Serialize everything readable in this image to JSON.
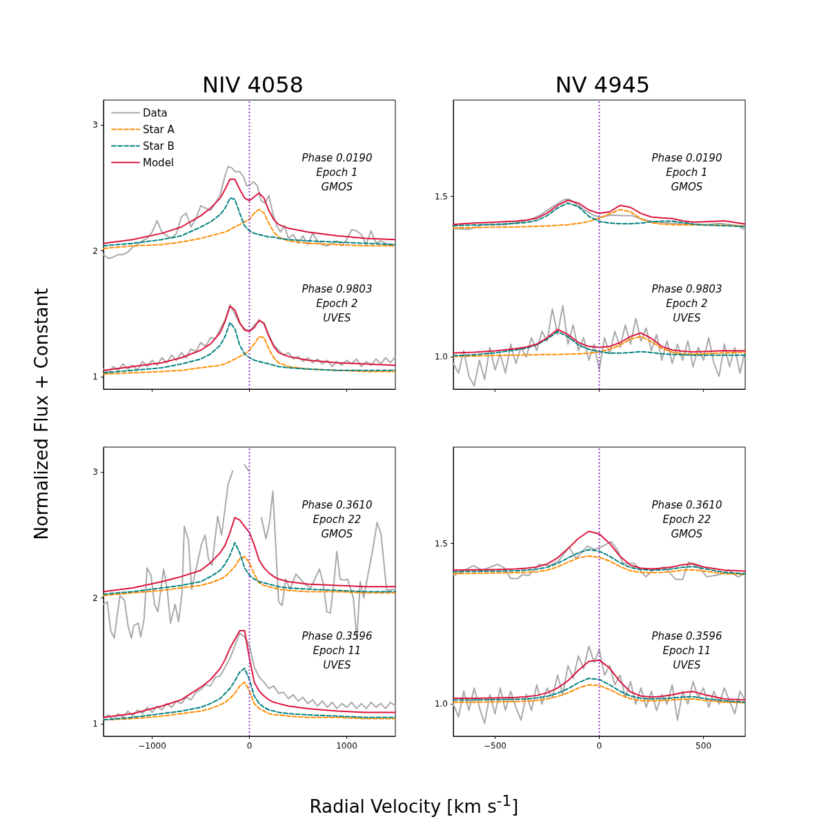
{
  "chart_data": [
    {
      "type": "line",
      "title": "NIV 4058",
      "ylabel": "Normalized Flux + Constant",
      "xlim": [
        -1500,
        1500
      ],
      "ylim": [
        0.9,
        3.2
      ],
      "xticks": [
        {
          "value": -1000,
          "label": null
        },
        {
          "value": 0,
          "label": null
        },
        {
          "value": 1000,
          "label": null
        }
      ],
      "yticks": [
        1,
        2,
        3
      ],
      "tick_labels": "y",
      "legend": "top left",
      "annotations": [
        "Phase 0.0190\nEpoch 1\nGMOS",
        "Phase 0.9803\nEpoch 2\nUVES"
      ],
      "ref_lines": [
        {
          "axis": "x",
          "value": 0,
          "color": "#9932cc",
          "line_style": "dotted"
        }
      ],
      "x": [
        -1500,
        -1200,
        -900,
        -700,
        -500,
        -400,
        -300,
        -250,
        -200,
        -150,
        -100,
        -50,
        0,
        50,
        100,
        150,
        200,
        250,
        300,
        400,
        600,
        900,
        1200,
        1500
      ],
      "series": [
        {
          "name": "Data",
          "color": "#a9a9a9",
          "line_style": "solid",
          "x": [
            -1500,
            -1450,
            -1400,
            -1350,
            -1300,
            -1250,
            -1200,
            -1150,
            -1100,
            -1050,
            -1000,
            -950,
            -900,
            -850,
            -800,
            -750,
            -700,
            -650,
            -600,
            -550,
            -500,
            -450,
            -400,
            -350,
            -300,
            -250,
            -220,
            -180,
            -150,
            -100,
            -60,
            -30,
            0,
            40,
            80,
            120,
            160,
            200,
            240,
            280,
            320,
            360,
            400,
            450,
            500,
            550,
            600,
            650,
            700,
            750,
            800,
            850,
            900,
            950,
            1000,
            1050,
            1100,
            1150,
            1200,
            1250,
            1300,
            1350,
            1400,
            1450,
            1500
          ],
          "values": [
            1.97,
            1.94,
            1.95,
            1.97,
            1.97,
            1.99,
            2.03,
            2.05,
            2.08,
            2.1,
            2.15,
            2.24,
            2.15,
            2.12,
            2.1,
            2.14,
            2.27,
            2.3,
            2.19,
            2.26,
            2.36,
            2.34,
            2.32,
            2.38,
            2.45,
            2.6,
            2.67,
            2.66,
            2.63,
            2.63,
            2.59,
            2.52,
            2.52,
            2.55,
            2.52,
            2.4,
            2.38,
            2.44,
            2.3,
            2.2,
            2.15,
            2.2,
            2.1,
            2.13,
            2.06,
            2.12,
            2.05,
            2.14,
            2.08,
            2.05,
            2.04,
            2.06,
            2.08,
            2.04,
            2.09,
            2.17,
            2.16,
            2.13,
            2.05,
            2.16,
            2.06,
            2.08,
            2.06,
            2.04,
            2.05
          ]
        },
        {
          "name": "Star A",
          "color": "#ff8c00",
          "line_style": "dashed",
          "values": [
            2.02,
            2.04,
            2.05,
            2.07,
            2.1,
            2.12,
            2.14,
            2.15,
            2.17,
            2.19,
            2.21,
            2.23,
            2.25,
            2.3,
            2.33,
            2.3,
            2.22,
            2.15,
            2.11,
            2.08,
            2.06,
            2.05,
            2.04,
            2.04
          ]
        },
        {
          "name": "Star B",
          "color": "#008080",
          "line_style": "dashed",
          "values": [
            2.04,
            2.06,
            2.09,
            2.12,
            2.19,
            2.23,
            2.29,
            2.34,
            2.42,
            2.41,
            2.3,
            2.2,
            2.16,
            2.14,
            2.13,
            2.12,
            2.11,
            2.11,
            2.1,
            2.09,
            2.08,
            2.07,
            2.06,
            2.05
          ]
        },
        {
          "name": "Model",
          "color": "#dc143c",
          "line_style": "solid",
          "values": [
            2.06,
            2.09,
            2.14,
            2.19,
            2.28,
            2.34,
            2.42,
            2.49,
            2.57,
            2.57,
            2.49,
            2.42,
            2.4,
            2.43,
            2.46,
            2.42,
            2.32,
            2.25,
            2.21,
            2.18,
            2.15,
            2.12,
            2.1,
            2.09
          ]
        },
        {
          "color": "#a9a9a9",
          "line_style": "solid",
          "x": [
            -1500,
            -1450,
            -1400,
            -1350,
            -1300,
            -1250,
            -1200,
            -1150,
            -1100,
            -1050,
            -1000,
            -950,
            -900,
            -850,
            -800,
            -750,
            -700,
            -650,
            -600,
            -550,
            -500,
            -450,
            -400,
            -350,
            -300,
            -250,
            -200,
            -150,
            -100,
            -50,
            0,
            50,
            100,
            150,
            200,
            250,
            300,
            350,
            400,
            450,
            500,
            550,
            600,
            650,
            700,
            750,
            800,
            850,
            900,
            950,
            1000,
            1050,
            1100,
            1150,
            1200,
            1250,
            1300,
            1350,
            1400,
            1450,
            1500
          ],
          "values": [
            1.06,
            1.03,
            1.08,
            1.05,
            1.1,
            1.06,
            1.09,
            1.05,
            1.12,
            1.08,
            1.13,
            1.09,
            1.15,
            1.11,
            1.17,
            1.13,
            1.19,
            1.15,
            1.22,
            1.2,
            1.27,
            1.24,
            1.31,
            1.3,
            1.38,
            1.45,
            1.57,
            1.5,
            1.42,
            1.38,
            1.36,
            1.41,
            1.44,
            1.43,
            1.33,
            1.25,
            1.21,
            1.17,
            1.19,
            1.14,
            1.16,
            1.12,
            1.15,
            1.11,
            1.14,
            1.1,
            1.13,
            1.08,
            1.12,
            1.09,
            1.13,
            1.1,
            1.14,
            1.08,
            1.12,
            1.09,
            1.14,
            1.1,
            1.15,
            1.11,
            1.16
          ]
        },
        {
          "color": "#ff8c00",
          "line_style": "dashed",
          "values": [
            1.02,
            1.03,
            1.04,
            1.05,
            1.07,
            1.08,
            1.09,
            1.1,
            1.12,
            1.14,
            1.16,
            1.18,
            1.21,
            1.26,
            1.32,
            1.31,
            1.22,
            1.15,
            1.11,
            1.08,
            1.06,
            1.05,
            1.04,
            1.04
          ]
        },
        {
          "color": "#008080",
          "line_style": "dashed",
          "values": [
            1.03,
            1.05,
            1.07,
            1.1,
            1.14,
            1.18,
            1.25,
            1.32,
            1.43,
            1.38,
            1.25,
            1.18,
            1.15,
            1.13,
            1.12,
            1.11,
            1.1,
            1.09,
            1.08,
            1.07,
            1.06,
            1.05,
            1.05,
            1.05
          ]
        },
        {
          "color": "#dc143c",
          "line_style": "solid",
          "values": [
            1.05,
            1.08,
            1.11,
            1.15,
            1.21,
            1.26,
            1.35,
            1.44,
            1.56,
            1.53,
            1.43,
            1.37,
            1.36,
            1.39,
            1.45,
            1.42,
            1.32,
            1.24,
            1.19,
            1.16,
            1.13,
            1.11,
            1.1,
            1.09
          ]
        }
      ]
    },
    {
      "type": "line",
      "title": "NV 4945",
      "xlim": [
        -700,
        700
      ],
      "ylim": [
        0.9,
        1.8
      ],
      "xticks": [
        {
          "value": -500,
          "label": null
        },
        {
          "value": 0,
          "label": null
        },
        {
          "value": 500,
          "label": null
        }
      ],
      "yticks": [
        {
          "value": 1,
          "label": "1.0"
        },
        1.5
      ],
      "tick_labels": "y",
      "annotations": [
        "Phase 0.0190\nEpoch 1\nGMOS",
        "Phase 0.9803\nEpoch 2\nUVES"
      ],
      "ref_lines": [
        {
          "axis": "x",
          "value": 0,
          "color": "#9932cc",
          "line_style": "dotted"
        }
      ],
      "x": [
        -700,
        -600,
        -500,
        -400,
        -350,
        -300,
        -250,
        -200,
        -150,
        -100,
        -50,
        0,
        50,
        100,
        150,
        200,
        250,
        300,
        350,
        400,
        450,
        500,
        600,
        700
      ],
      "series": [
        {
          "color": "#a9a9a9",
          "line_style": "solid",
          "x": [
            -700,
            -626,
            -560,
            -449,
            -339,
            -283,
            -217,
            -162,
            -140,
            -85,
            -30,
            3,
            58,
            114,
            158,
            202,
            268,
            334,
            434,
            511,
            577,
            665,
            698
          ],
          "values": [
            1.4,
            1.397,
            1.412,
            1.412,
            1.426,
            1.442,
            1.471,
            1.492,
            1.49,
            1.464,
            1.442,
            1.435,
            1.442,
            1.44,
            1.44,
            1.43,
            1.42,
            1.417,
            1.414,
            1.412,
            1.416,
            1.409,
            1.396
          ]
        },
        {
          "color": "#ff8c00",
          "line_style": "dashed",
          "values": [
            1.402,
            1.403,
            1.404,
            1.405,
            1.406,
            1.407,
            1.408,
            1.41,
            1.412,
            1.416,
            1.422,
            1.432,
            1.446,
            1.459,
            1.452,
            1.43,
            1.418,
            1.414,
            1.412,
            1.411,
            1.411,
            1.411,
            1.41,
            1.408
          ]
        },
        {
          "color": "#008080",
          "line_style": "dashed",
          "values": [
            1.409,
            1.411,
            1.413,
            1.416,
            1.419,
            1.425,
            1.44,
            1.464,
            1.479,
            1.468,
            1.438,
            1.422,
            1.417,
            1.415,
            1.415,
            1.417,
            1.421,
            1.423,
            1.423,
            1.419,
            1.414,
            1.411,
            1.409,
            1.406
          ]
        },
        {
          "color": "#dc143c",
          "line_style": "solid",
          "values": [
            1.413,
            1.417,
            1.42,
            1.423,
            1.426,
            1.432,
            1.448,
            1.472,
            1.488,
            1.479,
            1.458,
            1.447,
            1.452,
            1.472,
            1.466,
            1.447,
            1.436,
            1.433,
            1.431,
            1.424,
            1.42,
            1.421,
            1.424,
            1.414
          ]
        },
        {
          "color": "#a9a9a9",
          "line_style": "solid",
          "x": [
            -700,
            -675,
            -650,
            -625,
            -600,
            -575,
            -550,
            -525,
            -500,
            -475,
            -450,
            -425,
            -400,
            -375,
            -350,
            -325,
            -300,
            -275,
            -250,
            -225,
            -200,
            -175,
            -150,
            -125,
            -100,
            -75,
            -50,
            -25,
            0,
            25,
            50,
            75,
            100,
            125,
            150,
            175,
            200,
            225,
            250,
            275,
            300,
            325,
            350,
            375,
            400,
            425,
            450,
            475,
            500,
            525,
            550,
            575,
            600,
            625,
            650,
            675,
            700
          ],
          "values": [
            0.98,
            0.95,
            1.02,
            0.94,
            0.91,
            0.99,
            0.93,
            1.03,
            0.96,
            1.01,
            0.95,
            1.04,
            0.98,
            1.03,
            1.0,
            1.06,
            1.02,
            1.08,
            1.05,
            1.15,
            1.07,
            1.16,
            1.04,
            1.1,
            1.02,
            1.06,
            0.99,
            1.04,
            0.96,
            1.06,
            1.01,
            1.08,
            1.03,
            1.1,
            1.04,
            1.12,
            1.05,
            1.09,
            1.02,
            1.07,
            0.99,
            1.05,
            0.98,
            1.04,
            0.99,
            1.05,
            0.97,
            1.03,
            0.99,
            1.06,
            0.98,
            0.94,
            1.04,
            0.97,
            1.03,
            0.95,
            1.02
          ]
        },
        {
          "color": "#ff8c00",
          "line_style": "dashed",
          "values": [
            1.002,
            1.003,
            1.005,
            1.006,
            1.007,
            1.007,
            1.008,
            1.008,
            1.009,
            1.01,
            1.012,
            1.016,
            1.024,
            1.037,
            1.056,
            1.064,
            1.048,
            1.027,
            1.015,
            1.01,
            1.009,
            1.01,
            1.013,
            1.015
          ]
        },
        {
          "color": "#008080",
          "line_style": "dashed",
          "values": [
            1.004,
            1.007,
            1.013,
            1.022,
            1.028,
            1.038,
            1.056,
            1.079,
            1.063,
            1.038,
            1.024,
            1.017,
            1.012,
            1.012,
            1.014,
            1.017,
            1.014,
            1.01,
            1.008,
            1.007,
            1.006,
            1.006,
            1.006,
            1.006
          ]
        },
        {
          "color": "#dc143c",
          "line_style": "solid",
          "values": [
            1.013,
            1.015,
            1.019,
            1.026,
            1.031,
            1.04,
            1.06,
            1.086,
            1.07,
            1.045,
            1.033,
            1.03,
            1.033,
            1.045,
            1.064,
            1.075,
            1.058,
            1.033,
            1.022,
            1.018,
            1.016,
            1.017,
            1.02,
            1.019
          ]
        }
      ]
    },
    {
      "type": "line",
      "xlabel": "Radial Velocity [km s$^{-1}$]",
      "xlim": [
        -1500,
        1500
      ],
      "ylim": [
        0.9,
        3.2
      ],
      "xticks": [
        {
          "value": -1000,
          "label": "−1000"
        },
        0,
        1000
      ],
      "yticks": [
        1,
        2,
        3
      ],
      "annotations": [
        "Phase 0.3610\nEpoch 22\nGMOS",
        "Phase 0.3596\nEpoch 11\nUVES"
      ],
      "ref_lines": [
        {
          "axis": "x",
          "value": 0,
          "color": "#9932cc",
          "line_style": "dotted"
        }
      ],
      "x": [
        -1500,
        -1200,
        -900,
        -700,
        -500,
        -400,
        -300,
        -250,
        -200,
        -150,
        -100,
        -50,
        0,
        50,
        100,
        150,
        200,
        250,
        300,
        400,
        600,
        900,
        1200,
        1500
      ],
      "series": [
        {
          "color": "#a9a9a9",
          "line_style": "solid",
          "x": [
            -1500,
            -1461,
            -1426,
            -1390,
            -1331,
            -1284,
            -1248,
            -1213,
            -1189,
            -1142,
            -1118,
            -1083,
            -1052,
            -1012,
            -976,
            -941,
            -882,
            -846,
            -811,
            -764,
            -728,
            -693,
            -669,
            -627,
            -594,
            -551,
            -492,
            -456,
            -421,
            -385,
            -326,
            -286,
            -220,
            -173,
            -114,
            -97,
            -50,
            -7,
            28,
            44,
            60,
            87,
            123,
            170,
            206,
            241,
            300,
            336,
            371,
            418,
            477,
            571,
            630,
            720,
            760,
            796,
            831,
            867,
            898,
            933,
            973,
            1009,
            1068,
            1104,
            1139,
            1175,
            1210,
            1269,
            1312,
            1352,
            1411,
            1500
          ],
          "values": [
            1.95,
            1.97,
            1.74,
            1.68,
            2.02,
            1.98,
            1.78,
            1.68,
            1.78,
            1.8,
            1.69,
            1.83,
            2.24,
            2.18,
            1.95,
            1.89,
            2.23,
            2.07,
            1.8,
            1.95,
            1.81,
            2.04,
            2.57,
            2.46,
            2.07,
            2.22,
            2.43,
            2.5,
            2.31,
            2.26,
            2.65,
            2.5,
            2.9,
            3.01,
            null,
            null,
            3.06,
            3.01,
            null,
            null,
            null,
            null,
            2.64,
            2.47,
            2.6,
            2.85,
            1.97,
            1.94,
            2.15,
            2.07,
            2.19,
            2.11,
            2.08,
            2.23,
            2.11,
            1.89,
            1.88,
            2.11,
            2.37,
            2.15,
            2.14,
            2.15,
            2.0,
            1.67,
            2.13,
            2.0,
            2.15,
            2.39,
            2.6,
            2.51,
            2.06,
            2.07
          ]
        },
        {
          "color": "#ff8c00",
          "line_style": "dashed",
          "values": [
            2.02,
            2.04,
            2.06,
            2.08,
            2.1,
            2.12,
            2.15,
            2.17,
            2.21,
            2.25,
            2.31,
            2.33,
            2.28,
            2.19,
            2.12,
            2.1,
            2.09,
            2.08,
            2.07,
            2.06,
            2.05,
            2.05,
            2.04,
            2.04
          ]
        },
        {
          "color": "#008080",
          "line_style": "dashed",
          "values": [
            2.03,
            2.05,
            2.08,
            2.1,
            2.13,
            2.17,
            2.22,
            2.27,
            2.34,
            2.44,
            2.36,
            2.24,
            2.18,
            2.15,
            2.13,
            2.12,
            2.11,
            2.1,
            2.09,
            2.08,
            2.07,
            2.06,
            2.05,
            2.05
          ]
        },
        {
          "color": "#dc143c",
          "line_style": "solid",
          "values": [
            2.05,
            2.08,
            2.13,
            2.17,
            2.22,
            2.28,
            2.36,
            2.42,
            2.52,
            2.64,
            2.62,
            2.57,
            2.52,
            2.42,
            2.3,
            2.24,
            2.2,
            2.17,
            2.15,
            2.13,
            2.11,
            2.1,
            2.09,
            2.09
          ]
        },
        {
          "color": "#a9a9a9",
          "line_style": "solid",
          "x": [
            -1500,
            -1450,
            -1400,
            -1350,
            -1300,
            -1250,
            -1200,
            -1150,
            -1100,
            -1050,
            -1000,
            -950,
            -900,
            -850,
            -800,
            -750,
            -700,
            -650,
            -600,
            -550,
            -500,
            -450,
            -400,
            -350,
            -300,
            -250,
            -200,
            -150,
            -100,
            -50,
            0,
            50,
            100,
            150,
            200,
            250,
            300,
            350,
            400,
            450,
            500,
            550,
            600,
            650,
            700,
            750,
            800,
            850,
            900,
            950,
            1000,
            1050,
            1100,
            1150,
            1200,
            1250,
            1300,
            1350,
            1400,
            1450,
            1500
          ],
          "values": [
            1.04,
            1.07,
            1.03,
            1.08,
            1.05,
            1.1,
            1.06,
            1.11,
            1.08,
            1.13,
            1.09,
            1.14,
            1.11,
            1.16,
            1.13,
            1.18,
            1.16,
            1.21,
            1.19,
            1.25,
            1.27,
            1.31,
            1.3,
            1.37,
            1.38,
            1.45,
            1.52,
            1.62,
            1.72,
            1.69,
            1.62,
            1.45,
            1.37,
            1.33,
            1.28,
            1.3,
            1.24,
            1.25,
            1.2,
            1.23,
            1.18,
            1.21,
            1.16,
            1.19,
            1.14,
            1.18,
            1.13,
            1.17,
            1.12,
            1.16,
            1.13,
            1.17,
            1.12,
            1.16,
            1.12,
            1.17,
            1.13,
            1.16,
            1.12,
            1.17,
            1.14
          ]
        },
        {
          "color": "#ff8c00",
          "line_style": "dashed",
          "values": [
            1.03,
            1.04,
            1.06,
            1.08,
            1.1,
            1.12,
            1.15,
            1.17,
            1.2,
            1.24,
            1.3,
            1.33,
            1.26,
            1.16,
            1.12,
            1.1,
            1.08,
            1.07,
            1.07,
            1.06,
            1.05,
            1.05,
            1.04,
            1.04
          ]
        },
        {
          "color": "#008080",
          "line_style": "dashed",
          "values": [
            1.03,
            1.05,
            1.08,
            1.1,
            1.13,
            1.16,
            1.2,
            1.24,
            1.28,
            1.34,
            1.41,
            1.44,
            1.35,
            1.22,
            1.16,
            1.13,
            1.11,
            1.1,
            1.09,
            1.08,
            1.07,
            1.06,
            1.05,
            1.05
          ]
        },
        {
          "color": "#dc143c",
          "line_style": "solid",
          "values": [
            1.05,
            1.08,
            1.14,
            1.19,
            1.29,
            1.35,
            1.44,
            1.51,
            1.6,
            1.67,
            1.74,
            1.74,
            1.52,
            1.33,
            1.26,
            1.22,
            1.19,
            1.17,
            1.16,
            1.14,
            1.12,
            1.1,
            1.09,
            1.09
          ]
        }
      ]
    },
    {
      "type": "line",
      "xlim": [
        -700,
        700
      ],
      "ylim": [
        0.9,
        1.8
      ],
      "xticks": [
        {
          "value": -500,
          "label": "−500"
        },
        0,
        500
      ],
      "yticks": [
        {
          "value": 1,
          "label": "1.0"
        },
        1.5
      ],
      "annotations": [
        "Phase 0.3610\nEpoch 22\nGMOS",
        "Phase 0.3596\nEpoch 11\nUVES"
      ],
      "ref_lines": [
        {
          "axis": "x",
          "value": 0,
          "color": "#9932cc",
          "line_style": "dotted"
        }
      ],
      "x": [
        -700,
        -600,
        -500,
        -400,
        -350,
        -300,
        -250,
        -200,
        -150,
        -100,
        -50,
        0,
        50,
        100,
        150,
        200,
        250,
        300,
        350,
        400,
        450,
        500,
        600,
        700
      ],
      "series": [
        {
          "color": "#a9a9a9",
          "line_style": "solid",
          "x": [
            -698,
            -604,
            -560,
            -488,
            -455,
            -427,
            -394,
            -366,
            -339,
            -289,
            -239,
            -195,
            -145,
            -112,
            -57,
            -24,
            9,
            57,
            86,
            114,
            169,
            224,
            257,
            312,
            367,
            400,
            428,
            477,
            516,
            577,
            621,
            665,
            698
          ],
          "values": [
            1.4,
            1.431,
            1.417,
            1.435,
            1.424,
            1.392,
            1.39,
            1.404,
            1.4,
            1.435,
            1.431,
            1.446,
            1.489,
            1.453,
            1.492,
            1.481,
            1.489,
            1.506,
            1.481,
            1.438,
            1.438,
            1.396,
            1.417,
            1.427,
            1.388,
            1.388,
            1.442,
            1.427,
            1.396,
            1.403,
            1.417,
            1.396,
            1.406
          ]
        },
        {
          "color": "#ff8c00",
          "line_style": "dashed",
          "values": [
            1.406,
            1.407,
            1.408,
            1.409,
            1.41,
            1.412,
            1.417,
            1.427,
            1.442,
            1.455,
            1.461,
            1.457,
            1.445,
            1.428,
            1.415,
            1.41,
            1.409,
            1.41,
            1.413,
            1.417,
            1.418,
            1.414,
            1.406,
            1.404
          ]
        },
        {
          "color": "#008080",
          "line_style": "dashed",
          "values": [
            1.412,
            1.413,
            1.414,
            1.415,
            1.417,
            1.42,
            1.426,
            1.438,
            1.455,
            1.471,
            1.481,
            1.476,
            1.46,
            1.44,
            1.425,
            1.419,
            1.417,
            1.418,
            1.421,
            1.426,
            1.428,
            1.422,
            1.41,
            1.406
          ]
        },
        {
          "color": "#dc143c",
          "line_style": "solid",
          "values": [
            1.417,
            1.418,
            1.419,
            1.421,
            1.423,
            1.427,
            1.436,
            1.455,
            1.484,
            1.516,
            1.538,
            1.53,
            1.5,
            1.46,
            1.432,
            1.423,
            1.421,
            1.423,
            1.427,
            1.434,
            1.437,
            1.427,
            1.417,
            1.414
          ]
        },
        {
          "color": "#a9a9a9",
          "line_style": "solid",
          "x": [
            -700,
            -675,
            -650,
            -625,
            -600,
            -575,
            -550,
            -525,
            -500,
            -475,
            -450,
            -425,
            -400,
            -375,
            -350,
            -325,
            -300,
            -275,
            -250,
            -225,
            -200,
            -175,
            -150,
            -125,
            -100,
            -75,
            -50,
            -25,
            0,
            25,
            50,
            75,
            100,
            125,
            150,
            175,
            200,
            225,
            250,
            275,
            300,
            325,
            350,
            375,
            400,
            425,
            450,
            475,
            500,
            525,
            550,
            575,
            600,
            625,
            650,
            675,
            700
          ],
          "values": [
            1.0,
            0.96,
            1.04,
            0.98,
            1.05,
            0.99,
            0.94,
            1.03,
            0.97,
            1.05,
            0.98,
            1.04,
            0.99,
            0.95,
            1.03,
            0.98,
            1.06,
            1.0,
            1.05,
            1.02,
            1.09,
            1.03,
            1.12,
            1.08,
            1.15,
            1.11,
            1.18,
            1.13,
            1.17,
            1.09,
            1.12,
            1.06,
            1.09,
            1.02,
            1.07,
            1.0,
            1.05,
            0.99,
            1.04,
            0.98,
            1.03,
            1.0,
            1.06,
            0.95,
            1.04,
            1.0,
            1.07,
            1.02,
            1.05,
            0.99,
            1.04,
            1.0,
            1.05,
            1.01,
            0.97,
            1.04,
            1.01
          ]
        },
        {
          "color": "#ff8c00",
          "line_style": "dashed",
          "values": [
            1.006,
            1.006,
            1.007,
            1.008,
            1.009,
            1.011,
            1.016,
            1.024,
            1.035,
            1.05,
            1.06,
            1.058,
            1.045,
            1.029,
            1.017,
            1.011,
            1.01,
            1.011,
            1.013,
            1.015,
            1.016,
            1.012,
            1.006,
            1.004
          ]
        },
        {
          "color": "#008080",
          "line_style": "dashed",
          "values": [
            1.013,
            1.013,
            1.014,
            1.015,
            1.016,
            1.019,
            1.024,
            1.034,
            1.048,
            1.067,
            1.08,
            1.077,
            1.06,
            1.04,
            1.025,
            1.018,
            1.016,
            1.017,
            1.019,
            1.022,
            1.023,
            1.018,
            1.01,
            1.006
          ]
        },
        {
          "color": "#dc143c",
          "line_style": "solid",
          "values": [
            1.018,
            1.018,
            1.019,
            1.021,
            1.023,
            1.027,
            1.035,
            1.05,
            1.073,
            1.105,
            1.133,
            1.137,
            1.112,
            1.07,
            1.038,
            1.025,
            1.022,
            1.024,
            1.029,
            1.036,
            1.039,
            1.03,
            1.016,
            1.013
          ]
        }
      ]
    }
  ]
}
